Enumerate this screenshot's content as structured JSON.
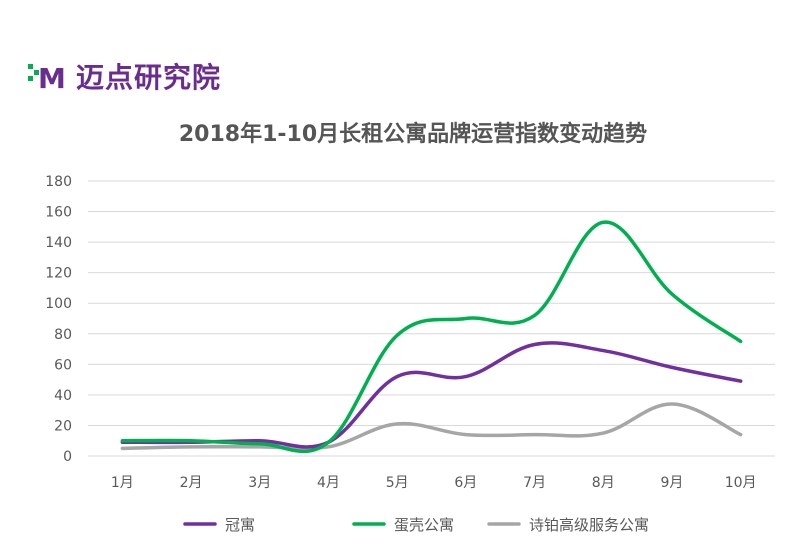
{
  "logo": {
    "text": "迈点研究院",
    "mark": "M"
  },
  "colors": {
    "guanyu": "#7030a0",
    "danke": "#00b050",
    "shibo": "#a6a6a6",
    "grid": "#d9d9d9",
    "logo": "#6a2c8f",
    "logo_green": "#00b050"
  },
  "chart_data": {
    "type": "line",
    "title": "2018年1-10月长租公寓品牌运营指数变动趋势",
    "categories": [
      "1月",
      "2月",
      "3月",
      "4月",
      "5月",
      "6月",
      "7月",
      "8月",
      "9月",
      "10月"
    ],
    "ylim": [
      0,
      180
    ],
    "yticks": [
      0,
      20,
      40,
      60,
      80,
      100,
      120,
      140,
      160,
      180
    ],
    "grid": true,
    "legend": "bottom",
    "series": [
      {
        "name": "冠寓",
        "color": "#7030a0",
        "values": [
          9,
          9,
          10,
          9,
          52,
          52,
          73,
          69,
          58,
          49
        ]
      },
      {
        "name": "蛋壳公寓",
        "color": "#00b050",
        "values": [
          10,
          10,
          8,
          9,
          79,
          90,
          92,
          153,
          106,
          75
        ]
      },
      {
        "name": "诗铂高级服务公寓",
        "color": "#a6a6a6",
        "values": [
          5,
          6,
          6,
          6,
          21,
          14,
          14,
          15,
          34,
          14
        ]
      }
    ]
  }
}
